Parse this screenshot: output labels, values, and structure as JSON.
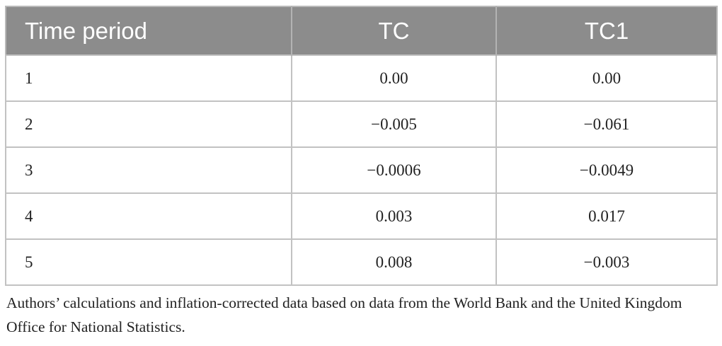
{
  "table": {
    "headers": [
      "Time period",
      "TC",
      "TC1"
    ],
    "rows": [
      [
        "1",
        "0.00",
        "0.00"
      ],
      [
        "2",
        "−0.005",
        "−0.061"
      ],
      [
        "3",
        "−0.0006",
        "−0.0049"
      ],
      [
        "4",
        "0.003",
        "0.017"
      ],
      [
        "5",
        "0.008",
        "−0.003"
      ]
    ]
  },
  "note": "Authors’ calculations and inflation-corrected data based on data from the World Bank and the United Kingdom Office for National Statistics."
}
